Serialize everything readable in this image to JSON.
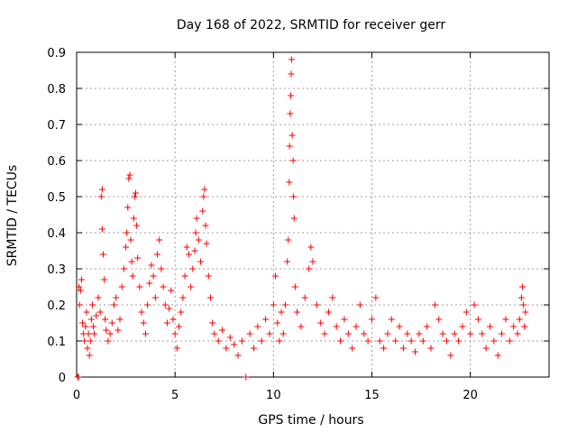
{
  "chart_data": {
    "type": "scatter",
    "title": "Day 168 of 2022, SRMTID for receiver gerr",
    "xlabel": "GPS time / hours",
    "ylabel": "SRMTID / TECUs",
    "xlim": [
      0,
      24
    ],
    "ylim": [
      0,
      0.9
    ],
    "xticks": [
      0,
      5,
      10,
      15,
      20
    ],
    "yticks": [
      0,
      0.1,
      0.2,
      0.3,
      0.4,
      0.5,
      0.6,
      0.7,
      0.8,
      0.9
    ],
    "grid": true,
    "marker": "+",
    "series": [
      {
        "name": "gerr",
        "color": "#ff0000",
        "note": "dense scatter of samples; values approximated",
        "points": [
          [
            0.05,
            0.0
          ],
          [
            0.1,
            0.0
          ],
          [
            0.12,
            0.25
          ],
          [
            0.15,
            0.2
          ],
          [
            0.2,
            0.24
          ],
          [
            0.25,
            0.27
          ],
          [
            0.3,
            0.15
          ],
          [
            0.35,
            0.12
          ],
          [
            0.4,
            0.1
          ],
          [
            0.45,
            0.14
          ],
          [
            0.5,
            0.18
          ],
          [
            0.55,
            0.08
          ],
          [
            0.6,
            0.12
          ],
          [
            0.65,
            0.06
          ],
          [
            0.7,
            0.1
          ],
          [
            0.75,
            0.16
          ],
          [
            0.8,
            0.2
          ],
          [
            0.85,
            0.14
          ],
          [
            0.9,
            0.12
          ],
          [
            1.0,
            0.17
          ],
          [
            1.1,
            0.22
          ],
          [
            1.2,
            0.18
          ],
          [
            1.25,
            0.5
          ],
          [
            1.3,
            0.52
          ],
          [
            1.3,
            0.41
          ],
          [
            1.35,
            0.34
          ],
          [
            1.4,
            0.27
          ],
          [
            1.45,
            0.16
          ],
          [
            1.5,
            0.13
          ],
          [
            1.6,
            0.1
          ],
          [
            1.7,
            0.12
          ],
          [
            1.8,
            0.15
          ],
          [
            1.9,
            0.2
          ],
          [
            2.0,
            0.22
          ],
          [
            2.1,
            0.13
          ],
          [
            2.2,
            0.16
          ],
          [
            2.3,
            0.25
          ],
          [
            2.4,
            0.3
          ],
          [
            2.5,
            0.36
          ],
          [
            2.55,
            0.4
          ],
          [
            2.6,
            0.47
          ],
          [
            2.65,
            0.55
          ],
          [
            2.7,
            0.56
          ],
          [
            2.75,
            0.38
          ],
          [
            2.8,
            0.32
          ],
          [
            2.85,
            0.28
          ],
          [
            2.9,
            0.44
          ],
          [
            2.95,
            0.5
          ],
          [
            3.0,
            0.51
          ],
          [
            3.05,
            0.42
          ],
          [
            3.1,
            0.33
          ],
          [
            3.2,
            0.25
          ],
          [
            3.3,
            0.18
          ],
          [
            3.4,
            0.15
          ],
          [
            3.5,
            0.12
          ],
          [
            3.6,
            0.2
          ],
          [
            3.7,
            0.26
          ],
          [
            3.8,
            0.31
          ],
          [
            3.9,
            0.28
          ],
          [
            4.0,
            0.22
          ],
          [
            4.1,
            0.34
          ],
          [
            4.2,
            0.38
          ],
          [
            4.3,
            0.3
          ],
          [
            4.4,
            0.25
          ],
          [
            4.5,
            0.2
          ],
          [
            4.6,
            0.15
          ],
          [
            4.7,
            0.19
          ],
          [
            4.8,
            0.24
          ],
          [
            4.9,
            0.16
          ],
          [
            5.0,
            0.12
          ],
          [
            5.1,
            0.08
          ],
          [
            5.2,
            0.14
          ],
          [
            5.3,
            0.18
          ],
          [
            5.4,
            0.22
          ],
          [
            5.5,
            0.28
          ],
          [
            5.6,
            0.36
          ],
          [
            5.7,
            0.34
          ],
          [
            5.8,
            0.25
          ],
          [
            5.9,
            0.3
          ],
          [
            6.0,
            0.35
          ],
          [
            6.05,
            0.4
          ],
          [
            6.1,
            0.44
          ],
          [
            6.2,
            0.38
          ],
          [
            6.3,
            0.32
          ],
          [
            6.4,
            0.46
          ],
          [
            6.45,
            0.5
          ],
          [
            6.5,
            0.52
          ],
          [
            6.55,
            0.42
          ],
          [
            6.6,
            0.37
          ],
          [
            6.7,
            0.28
          ],
          [
            6.8,
            0.22
          ],
          [
            6.9,
            0.15
          ],
          [
            7.0,
            0.12
          ],
          [
            7.2,
            0.1
          ],
          [
            7.4,
            0.13
          ],
          [
            7.6,
            0.08
          ],
          [
            7.8,
            0.11
          ],
          [
            8.0,
            0.09
          ],
          [
            8.2,
            0.06
          ],
          [
            8.4,
            0.1
          ],
          [
            8.6,
            0.0
          ],
          [
            8.8,
            0.12
          ],
          [
            9.0,
            0.08
          ],
          [
            9.2,
            0.14
          ],
          [
            9.4,
            0.1
          ],
          [
            9.6,
            0.16
          ],
          [
            9.8,
            0.12
          ],
          [
            10.0,
            0.2
          ],
          [
            10.1,
            0.28
          ],
          [
            10.2,
            0.15
          ],
          [
            10.3,
            0.1
          ],
          [
            10.4,
            0.18
          ],
          [
            10.5,
            0.12
          ],
          [
            10.6,
            0.2
          ],
          [
            10.7,
            0.32
          ],
          [
            10.75,
            0.38
          ],
          [
            10.8,
            0.54
          ],
          [
            10.82,
            0.64
          ],
          [
            10.85,
            0.73
          ],
          [
            10.88,
            0.78
          ],
          [
            10.9,
            0.84
          ],
          [
            10.92,
            0.88
          ],
          [
            10.95,
            0.67
          ],
          [
            11.0,
            0.6
          ],
          [
            11.02,
            0.5
          ],
          [
            11.05,
            0.44
          ],
          [
            11.1,
            0.25
          ],
          [
            11.2,
            0.18
          ],
          [
            11.4,
            0.14
          ],
          [
            11.6,
            0.22
          ],
          [
            11.8,
            0.3
          ],
          [
            11.9,
            0.36
          ],
          [
            12.0,
            0.32
          ],
          [
            12.2,
            0.2
          ],
          [
            12.4,
            0.15
          ],
          [
            12.6,
            0.12
          ],
          [
            12.8,
            0.18
          ],
          [
            13.0,
            0.22
          ],
          [
            13.2,
            0.14
          ],
          [
            13.4,
            0.1
          ],
          [
            13.6,
            0.16
          ],
          [
            13.8,
            0.12
          ],
          [
            14.0,
            0.08
          ],
          [
            14.2,
            0.14
          ],
          [
            14.4,
            0.2
          ],
          [
            14.6,
            0.12
          ],
          [
            14.8,
            0.1
          ],
          [
            15.0,
            0.16
          ],
          [
            15.2,
            0.22
          ],
          [
            15.4,
            0.1
          ],
          [
            15.6,
            0.08
          ],
          [
            15.8,
            0.12
          ],
          [
            16.0,
            0.16
          ],
          [
            16.2,
            0.1
          ],
          [
            16.4,
            0.14
          ],
          [
            16.6,
            0.08
          ],
          [
            16.8,
            0.12
          ],
          [
            17.0,
            0.1
          ],
          [
            17.2,
            0.07
          ],
          [
            17.4,
            0.12
          ],
          [
            17.6,
            0.1
          ],
          [
            17.8,
            0.14
          ],
          [
            18.0,
            0.08
          ],
          [
            18.2,
            0.2
          ],
          [
            18.4,
            0.16
          ],
          [
            18.6,
            0.12
          ],
          [
            18.8,
            0.1
          ],
          [
            19.0,
            0.06
          ],
          [
            19.2,
            0.12
          ],
          [
            19.4,
            0.1
          ],
          [
            19.6,
            0.14
          ],
          [
            19.8,
            0.18
          ],
          [
            20.0,
            0.12
          ],
          [
            20.2,
            0.2
          ],
          [
            20.4,
            0.16
          ],
          [
            20.6,
            0.12
          ],
          [
            20.8,
            0.08
          ],
          [
            21.0,
            0.14
          ],
          [
            21.2,
            0.1
          ],
          [
            21.4,
            0.06
          ],
          [
            21.6,
            0.12
          ],
          [
            21.8,
            0.16
          ],
          [
            22.0,
            0.1
          ],
          [
            22.2,
            0.14
          ],
          [
            22.4,
            0.12
          ],
          [
            22.5,
            0.16
          ],
          [
            22.6,
            0.22
          ],
          [
            22.65,
            0.25
          ],
          [
            22.7,
            0.2
          ],
          [
            22.75,
            0.14
          ],
          [
            22.8,
            0.18
          ]
        ]
      }
    ]
  }
}
